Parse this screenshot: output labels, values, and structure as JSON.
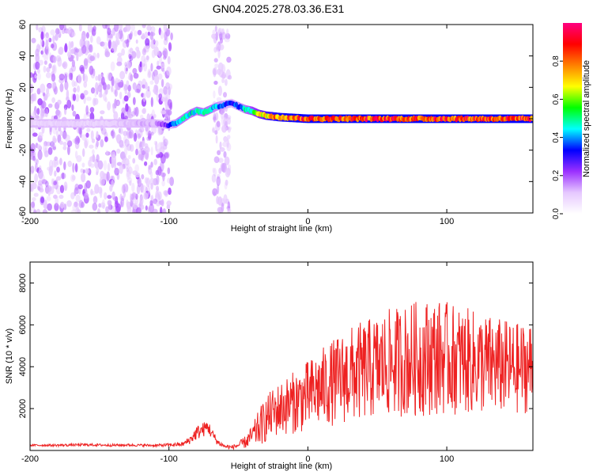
{
  "title": "GN04.2025.278.03.36.E31",
  "chart_data": [
    {
      "type": "heatmap",
      "name": "spectrogram",
      "xlabel": "Height of straight line (km)",
      "ylabel": "Frequency (Hz)",
      "xlim": [
        -200,
        162
      ],
      "ylim": [
        -60,
        60
      ],
      "xticks": [
        -200,
        -100,
        0,
        100
      ],
      "yticks": [
        60,
        40,
        20,
        0,
        -20,
        -40,
        -60
      ],
      "colorbar": {
        "label": "Normalized spectral amplitude",
        "range": [
          0,
          1
        ],
        "ticks": [
          "0.0",
          "0.2",
          "0.4",
          "0.6",
          "0.8"
        ],
        "colormap": [
          "#ffffff",
          "#e6c8ff",
          "#9b30ff",
          "#0000ff",
          "#00ffff",
          "#00ff00",
          "#ffff00",
          "#ff8000",
          "#ff0000",
          "#ff0080"
        ]
      },
      "ridge": {
        "x": [
          -200,
          -150,
          -110,
          -100,
          -95,
          -90,
          -85,
          -80,
          -75,
          -70,
          -65,
          -60,
          -55,
          -50,
          -45,
          -40,
          -35,
          -30,
          -20,
          0,
          50,
          100,
          162
        ],
        "y": [
          -3,
          -3,
          -3,
          -4,
          -3,
          0,
          3,
          5,
          4,
          6,
          8,
          9,
          10,
          8,
          6,
          5,
          3,
          2,
          1,
          0,
          0,
          0,
          0
        ],
        "amplitude": [
          0.1,
          0.1,
          0.15,
          0.3,
          0.45,
          0.5,
          0.5,
          0.5,
          0.5,
          0.5,
          0.45,
          0.4,
          0.35,
          0.4,
          0.5,
          0.6,
          0.7,
          0.8,
          0.9,
          0.95,
          0.95,
          0.95,
          0.95
        ]
      },
      "noise_regions": [
        {
          "x_range": [
            -200,
            -98
          ],
          "y_range": [
            -60,
            60
          ],
          "amplitude": [
            0.02,
            0.15
          ]
        },
        {
          "x_range": [
            -68,
            -56
          ],
          "y_range": [
            -60,
            60
          ],
          "amplitude": [
            0.02,
            0.1
          ]
        }
      ]
    },
    {
      "type": "line",
      "name": "snr",
      "xlabel": "Height of straight line (km)",
      "ylabel": "SNR (10 * v/v)",
      "xlim": [
        -200,
        162
      ],
      "ylim": [
        0,
        9000
      ],
      "xticks": [
        -200,
        -100,
        0,
        100
      ],
      "yticks": [
        2000,
        4000,
        6000,
        8000
      ],
      "color": "#ee2222",
      "series": [
        {
          "name": "SNR",
          "x": [
            -200,
            -190,
            -180,
            -170,
            -160,
            -150,
            -140,
            -130,
            -120,
            -110,
            -100,
            -90,
            -85,
            -80,
            -75,
            -72,
            -70,
            -65,
            -60,
            -55,
            -50,
            -45,
            -40,
            -35,
            -30,
            -25,
            -20,
            -10,
            0,
            10,
            20,
            30,
            40,
            50,
            60,
            70,
            80,
            90,
            100,
            110,
            120,
            130,
            140,
            150,
            160
          ],
          "y": [
            250,
            250,
            250,
            260,
            270,
            260,
            250,
            260,
            250,
            240,
            260,
            300,
            500,
            850,
            1000,
            1150,
            900,
            400,
            200,
            150,
            250,
            400,
            700,
            1100,
            1500,
            1800,
            2000,
            2300,
            2600,
            3000,
            3300,
            3600,
            3800,
            4000,
            4200,
            4300,
            4400,
            4500,
            4400,
            4300,
            4200,
            4100,
            4000,
            3900,
            4000
          ],
          "noise_envelope": [
            50,
            50,
            60,
            60,
            60,
            60,
            60,
            60,
            60,
            60,
            80,
            100,
            200,
            350,
            350,
            350,
            300,
            150,
            100,
            100,
            150,
            300,
            500,
            900,
            1100,
            1200,
            1300,
            1500,
            1700,
            1900,
            2100,
            2300,
            2400,
            2500,
            2600,
            2700,
            2800,
            2800,
            2700,
            2600,
            2500,
            2400,
            2300,
            2200,
            2200
          ]
        }
      ]
    }
  ]
}
